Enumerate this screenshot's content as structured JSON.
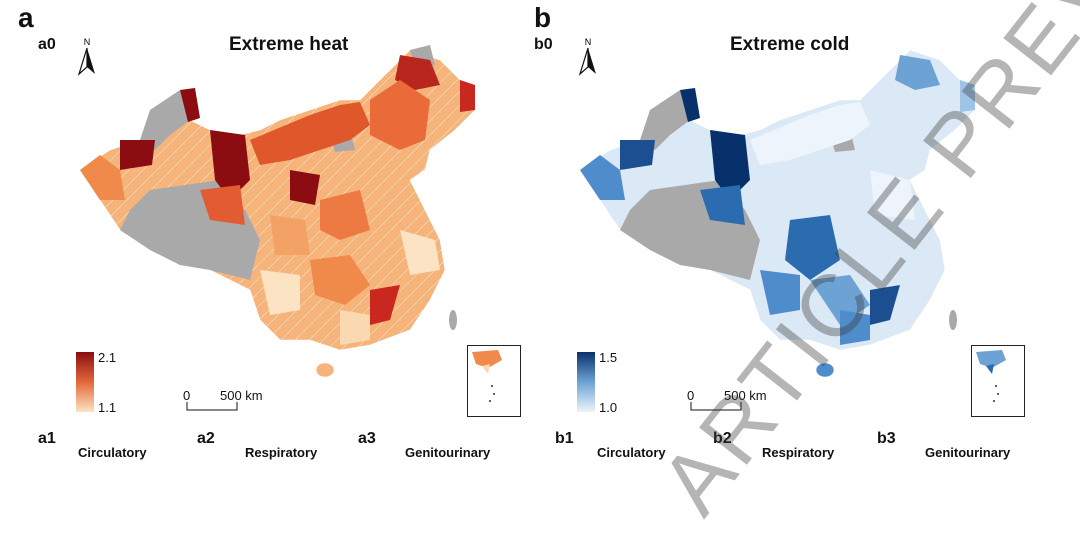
{
  "panel_a": {
    "letter": "a",
    "sub": "a0",
    "title": "Extreme heat",
    "north": "N",
    "legend_high": "2.1",
    "legend_low": "1.1",
    "scale_zero": "0",
    "scale_km": "500 km",
    "colors": {
      "low": "#fbe3c3",
      "mid": "#f08a4b",
      "high": "#8b0d12",
      "nodata": "#a9a9a9"
    }
  },
  "panel_b": {
    "letter": "b",
    "sub": "b0",
    "title": "Extreme cold",
    "north": "N",
    "legend_high": "1.5",
    "legend_low": "1.0",
    "scale_zero": "0",
    "scale_km": "500 km",
    "colors": {
      "low": "#eef4fb",
      "mid": "#6da3d4",
      "high": "#08306b",
      "nodata": "#a9a9a9"
    }
  },
  "bottom_row": [
    {
      "id": "a1",
      "cat": "Circulatory"
    },
    {
      "id": "a2",
      "cat": "Respiratory"
    },
    {
      "id": "a3",
      "cat": "Genitourinary"
    },
    {
      "id": "b1",
      "cat": "Circulatory"
    },
    {
      "id": "b2",
      "cat": "Respiratory"
    },
    {
      "id": "b3",
      "cat": "Genitourinary"
    }
  ],
  "watermark": "ARTICLE PREVIEW",
  "icons": [
    "north-arrow-icon"
  ]
}
